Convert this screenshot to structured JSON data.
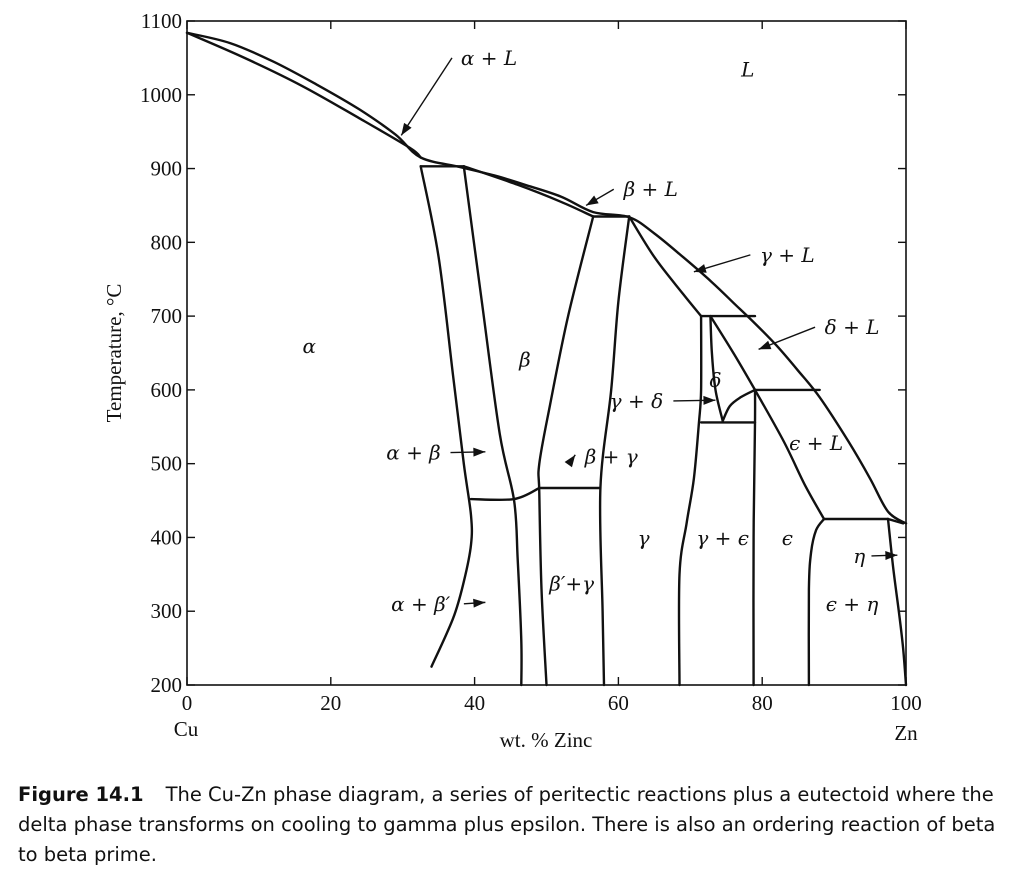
{
  "chart_data": {
    "type": "phase-diagram",
    "xlabel": "wt. % Zinc",
    "ylabel": "Temperature, °C",
    "xlim": [
      0,
      100
    ],
    "ylim": [
      200,
      1100
    ],
    "x_ticks": [
      0,
      20,
      40,
      60,
      80,
      100
    ],
    "y_ticks": [
      200,
      300,
      400,
      500,
      600,
      700,
      800,
      900,
      1000,
      1100
    ],
    "x_end_labels": {
      "left": "Cu",
      "right": "Zn"
    },
    "regions": [
      {
        "label": "L",
        "x": 78,
        "y": 1025
      },
      {
        "label": "α",
        "x": 17,
        "y": 650
      },
      {
        "label": "β",
        "x": 47,
        "y": 632
      },
      {
        "label": "γ",
        "x": 63.5,
        "y": 390
      },
      {
        "label": "γ + ϵ",
        "x": 74.5,
        "y": 390
      },
      {
        "label": "ϵ",
        "x": 83.5,
        "y": 390
      },
      {
        "label": "β′+γ",
        "x": 53.5,
        "y": 328
      },
      {
        "label": "δ",
        "x": 73.5,
        "y": 604
      },
      {
        "label": "ϵ + η",
        "x": 92.5,
        "y": 300
      }
    ],
    "annotations": [
      {
        "label": "α + L",
        "text_x": 42,
        "text_y": 1050,
        "arrow_to": [
          29.8,
          945
        ]
      },
      {
        "label": "β + L",
        "text_x": 64.5,
        "text_y": 872,
        "arrow_to": [
          55.5,
          850
        ]
      },
      {
        "label": "γ + L",
        "text_x": 83.5,
        "text_y": 783,
        "arrow_to": [
          70.5,
          760
        ]
      },
      {
        "label": "δ + L",
        "text_x": 92.5,
        "text_y": 685,
        "arrow_to": [
          79.5,
          655
        ]
      },
      {
        "label": "γ + δ",
        "text_x": 62.5,
        "text_y": 585,
        "arrow_to": [
          73.5,
          586
        ]
      },
      {
        "label": "ϵ + L",
        "text_x": 87.5,
        "text_y": 528,
        "arrow_to": null
      },
      {
        "label": "α + β",
        "text_x": 31.5,
        "text_y": 515,
        "arrow_to": [
          41.5,
          516
        ]
      },
      {
        "label": "β + γ",
        "text_x": 59,
        "text_y": 510,
        "arrow_to": [
          54,
          512
        ]
      },
      {
        "label": "α + β′",
        "text_x": 32.5,
        "text_y": 310,
        "arrow_to": [
          41.5,
          312
        ]
      },
      {
        "label": "η",
        "text_x": 93.5,
        "text_y": 375,
        "arrow_to": [
          98.8,
          376
        ]
      }
    ],
    "boundaries": [
      {
        "name": "liquidus",
        "x": [
          0,
          6,
          12,
          18,
          24,
          29,
          32.5,
          38,
          43,
          47,
          52,
          56.5,
          61.5,
          65,
          69,
          73,
          76,
          79,
          82,
          85,
          88,
          92,
          95,
          97.5,
          100
        ],
        "y": [
          1084,
          1070,
          1045,
          1014,
          980,
          946,
          915,
          902,
          890,
          878,
          862,
          841,
          834,
          812,
          780,
          746,
          718,
          690,
          660,
          626,
          590,
          530,
          480,
          435,
          419
        ]
      },
      {
        "name": "solidus-alpha",
        "x": [
          0,
          8,
          16,
          24,
          31,
          32.5
        ],
        "y": [
          1084,
          1050,
          1012,
          968,
          928,
          915
        ]
      },
      {
        "name": "peritectic-900",
        "x": [
          32.5,
          38.5
        ],
        "y": [
          903,
          903
        ]
      },
      {
        "name": "beta-plus-L-bottom",
        "x": [
          38.5,
          46,
          52,
          56.5
        ],
        "y": [
          903,
          878,
          855,
          835
        ]
      },
      {
        "name": "peritectic-835",
        "x": [
          56.5,
          61.5
        ],
        "y": [
          835,
          835
        ]
      },
      {
        "name": "alpha-solvus",
        "x": [
          32.5,
          35,
          37,
          38.5,
          39.5,
          39.5,
          38.5,
          37,
          34
        ],
        "y": [
          903,
          780,
          620,
          500,
          430,
          390,
          340,
          290,
          225
        ]
      },
      {
        "name": "beta-left",
        "x": [
          38.5,
          41,
          43.5,
          45.5,
          46,
          46.5,
          46.5
        ],
        "y": [
          903,
          720,
          540,
          450,
          370,
          260,
          200
        ]
      },
      {
        "name": "line-454",
        "x": [
          39.5,
          45.5,
          49
        ],
        "y": [
          452,
          452,
          467
        ]
      },
      {
        "name": "beta-right",
        "x": [
          56.5,
          53,
          50.5,
          49,
          49,
          49.3,
          50
        ],
        "y": [
          835,
          700,
          580,
          500,
          460,
          330,
          200
        ]
      },
      {
        "name": "line-468",
        "x": [
          49,
          57.5
        ],
        "y": [
          467,
          467
        ]
      },
      {
        "name": "gamma-left",
        "x": [
          61.5,
          60,
          59,
          57.5,
          57.8,
          58
        ],
        "y": [
          835,
          720,
          600,
          467,
          300,
          200
        ]
      },
      {
        "name": "gamma-L",
        "x": [
          61.5,
          65,
          69,
          71.5
        ],
        "y": [
          835,
          780,
          730,
          700
        ]
      },
      {
        "name": "peritectic-700",
        "x": [
          71.5,
          79
        ],
        "y": [
          700,
          700
        ]
      },
      {
        "name": "gamma-right",
        "x": [
          71.5,
          71.5,
          71.2,
          70.5,
          69.5,
          68.5,
          68.5
        ],
        "y": [
          700,
          600,
          555,
          480,
          420,
          350,
          200
        ]
      },
      {
        "name": "delta-left",
        "x": [
          72.8,
          73,
          73.5,
          74.5
        ],
        "y": [
          700,
          650,
          600,
          558
        ]
      },
      {
        "name": "delta-right",
        "x": [
          79,
          77,
          75.5,
          74.5
        ],
        "y": [
          600,
          590,
          578,
          558
        ]
      },
      {
        "name": "eutectoid-558",
        "x": [
          71.5,
          79
        ],
        "y": [
          556,
          556
        ]
      },
      {
        "name": "delta-L-bottom",
        "x": [
          72.8,
          76,
          79
        ],
        "y": [
          700,
          650,
          600
        ]
      },
      {
        "name": "peritectic-598",
        "x": [
          79,
          88
        ],
        "y": [
          600,
          600
        ]
      },
      {
        "name": "epsilon-left",
        "x": [
          79,
          79,
          78.8,
          78.8
        ],
        "y": [
          600,
          556,
          400,
          200
        ]
      },
      {
        "name": "epsilon-L-bottom",
        "x": [
          79,
          83,
          86,
          88.6
        ],
        "y": [
          600,
          530,
          470,
          425
        ]
      },
      {
        "name": "epsilon-right",
        "x": [
          88.6,
          87.5,
          86.8,
          86.5,
          86.5
        ],
        "y": [
          425,
          410,
          380,
          330,
          200
        ]
      },
      {
        "name": "peritectic-424",
        "x": [
          88.6,
          97.5
        ],
        "y": [
          425,
          425
        ]
      },
      {
        "name": "eta-line",
        "x": [
          97.5,
          99.6
        ],
        "y": [
          425,
          419
        ]
      },
      {
        "name": "eta-solvus",
        "x": [
          97.5,
          98.2,
          99,
          99.6,
          100
        ],
        "y": [
          425,
          360,
          300,
          250,
          200
        ]
      }
    ]
  },
  "caption": {
    "label": "Figure 14.1",
    "text": "The Cu-Zn phase diagram, a series of peritectic reactions plus a eutectoid where the delta phase transforms on cooling to gamma plus epsilon. There is also an ordering reaction of beta to beta prime."
  }
}
